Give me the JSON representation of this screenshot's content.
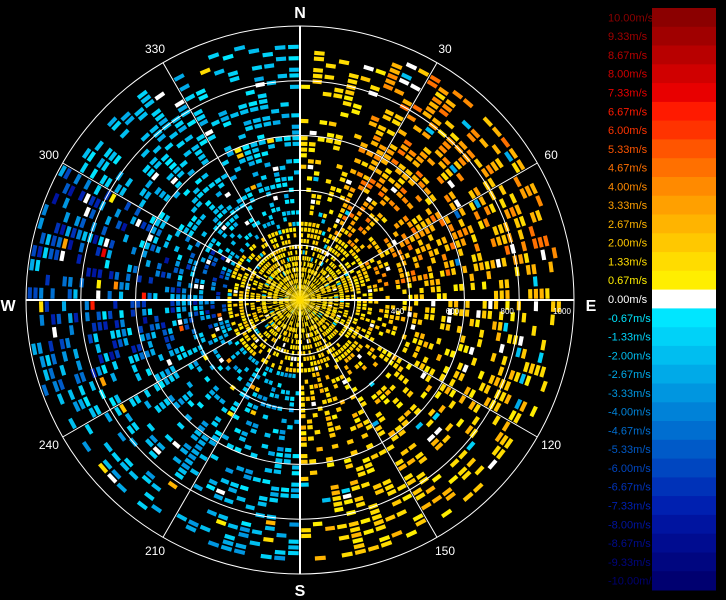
{
  "chart_data": {
    "type": "polar-radial-velocity",
    "cardinal_labels": {
      "north": "N",
      "east": "E",
      "south": "S",
      "west": "W"
    },
    "angle_labels": [
      "30",
      "60",
      "120",
      "150",
      "210",
      "240",
      "300",
      "330"
    ],
    "range_labels": [
      "400",
      "600",
      "800",
      "1000"
    ],
    "range_max": 1000,
    "grid": true,
    "legend_position": "right",
    "color_scale": [
      {
        "label": "10.00m/s",
        "value": 10.0,
        "color": "#8b0000"
      },
      {
        "label": "9.33m/s",
        "value": 9.33,
        "color": "#a00000"
      },
      {
        "label": "8.67m/s",
        "value": 8.67,
        "color": "#b80000"
      },
      {
        "label": "8.00m/s",
        "value": 8.0,
        "color": "#d00000"
      },
      {
        "label": "7.33m/s",
        "value": 7.33,
        "color": "#e80000"
      },
      {
        "label": "6.67m/s",
        "value": 6.67,
        "color": "#ff1a00"
      },
      {
        "label": "6.00m/s",
        "value": 6.0,
        "color": "#ff3300"
      },
      {
        "label": "5.33m/s",
        "value": 5.33,
        "color": "#ff5500"
      },
      {
        "label": "4.67m/s",
        "value": 4.67,
        "color": "#ff7000"
      },
      {
        "label": "4.00m/s",
        "value": 4.0,
        "color": "#ff8a00"
      },
      {
        "label": "3.33m/s",
        "value": 3.33,
        "color": "#ffa000"
      },
      {
        "label": "2.67m/s",
        "value": 2.67,
        "color": "#ffb400"
      },
      {
        "label": "2.00m/s",
        "value": 2.0,
        "color": "#ffc800"
      },
      {
        "label": "1.33m/s",
        "value": 1.33,
        "color": "#ffdc00"
      },
      {
        "label": "0.67m/s",
        "value": 0.67,
        "color": "#ffee00"
      },
      {
        "label": "0.00m/s",
        "value": 0.0,
        "color": "#ffffff"
      },
      {
        "label": "-0.67m/s",
        "value": -0.67,
        "color": "#00e6ff"
      },
      {
        "label": "-1.33m/s",
        "value": -1.33,
        "color": "#00d2f8"
      },
      {
        "label": "-2.00m/s",
        "value": -2.0,
        "color": "#00bef0"
      },
      {
        "label": "-2.67m/s",
        "value": -2.67,
        "color": "#00aae8"
      },
      {
        "label": "-3.33m/s",
        "value": -3.33,
        "color": "#0096e0"
      },
      {
        "label": "-4.00m/s",
        "value": -4.0,
        "color": "#0082d8"
      },
      {
        "label": "-4.67m/s",
        "value": -4.67,
        "color": "#006ed0"
      },
      {
        "label": "-5.33m/s",
        "value": -5.33,
        "color": "#005ac8"
      },
      {
        "label": "-6.00m/s",
        "value": -6.0,
        "color": "#0046c0"
      },
      {
        "label": "-6.67m/s",
        "value": -6.67,
        "color": "#0032b8"
      },
      {
        "label": "-7.33m/s",
        "value": -7.33,
        "color": "#0020b0"
      },
      {
        "label": "-8.00m/s",
        "value": -8.0,
        "color": "#0014a0"
      },
      {
        "label": "-8.67m/s",
        "value": -8.67,
        "color": "#000c90"
      },
      {
        "label": "-9.33m/s",
        "value": -9.33,
        "color": "#000680"
      },
      {
        "label": "-10.00m/s",
        "value": -10.0,
        "color": "#000070"
      }
    ],
    "sectors": [
      {
        "az_from": 20,
        "az_to": 80,
        "range_from": 0,
        "range_to": 950,
        "velocity_min": 1.33,
        "velocity_max": 4.67,
        "density": 0.55
      },
      {
        "az_from": 80,
        "az_to": 180,
        "range_from": 0,
        "range_to": 950,
        "velocity_min": 0.67,
        "velocity_max": 2.67,
        "density": 0.4
      },
      {
        "az_from": 180,
        "az_to": 250,
        "range_from": 0,
        "range_to": 950,
        "velocity_min": -3.33,
        "velocity_max": -0.67,
        "density": 0.4
      },
      {
        "az_from": 250,
        "az_to": 300,
        "range_from": 100,
        "range_to": 1000,
        "velocity_min": -8.0,
        "velocity_max": -0.67,
        "density": 0.5
      },
      {
        "az_from": 300,
        "az_to": 360,
        "range_from": 100,
        "range_to": 950,
        "velocity_min": -2.67,
        "velocity_max": -0.67,
        "density": 0.4
      },
      {
        "az_from": 0,
        "az_to": 20,
        "range_from": 50,
        "range_to": 900,
        "velocity_min": 0.67,
        "velocity_max": 2.0,
        "density": 0.35
      },
      {
        "az_from": 0,
        "az_to": 360,
        "range_from": 0,
        "range_to": 250,
        "velocity_min": 0.67,
        "velocity_max": 2.0,
        "density": 0.7
      }
    ]
  }
}
